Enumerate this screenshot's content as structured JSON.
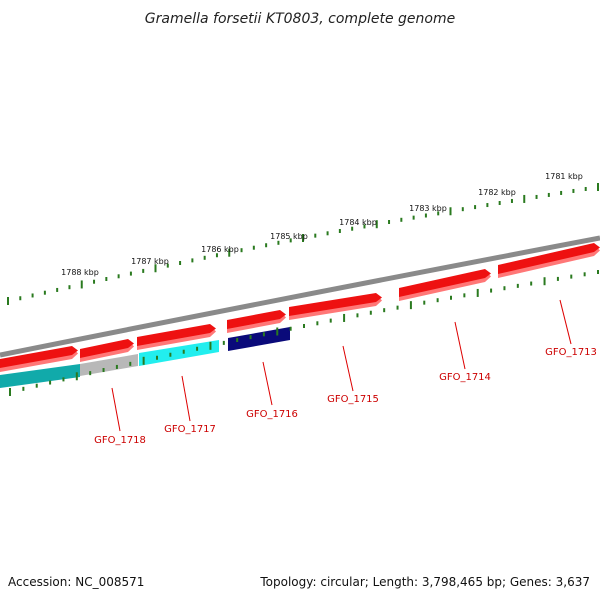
{
  "title": "Gramella forsetii KT0803, complete genome",
  "footer": {
    "accession": "Accession: NC_008571",
    "summary": "Topology: circular; Length: 3,798,465 bp; Genes: 3,637"
  },
  "colors": {
    "backbone": "#8a8a8a",
    "tick": "#2a7a1f",
    "forward_gene": "#ee1111",
    "forward_gene_shadow": "#ff7777",
    "label": "#cc0000",
    "leader_line": "#dd0000"
  },
  "kbp_labels": [
    "1781 kbp",
    "1782 kbp",
    "1783 kbp",
    "1784 kbp",
    "1785 kbp",
    "1786 kbp",
    "1787 kbp",
    "1788 kbp"
  ],
  "genes": [
    {
      "name": "GFO_1713",
      "strand": "forward",
      "color": "#ee1111"
    },
    {
      "name": "GFO_1714",
      "strand": "forward",
      "color": "#ee1111"
    },
    {
      "name": "GFO_1715",
      "strand": "forward",
      "color": "#ee1111"
    },
    {
      "name": "GFO_1716",
      "strand": "reverse",
      "color": "#0a0a7a"
    },
    {
      "name": "GFO_1717",
      "strand": "reverse",
      "color": "#22eeee"
    },
    {
      "name": "GFO_1718",
      "strand": "reverse",
      "color": "#b8b8b8"
    }
  ]
}
